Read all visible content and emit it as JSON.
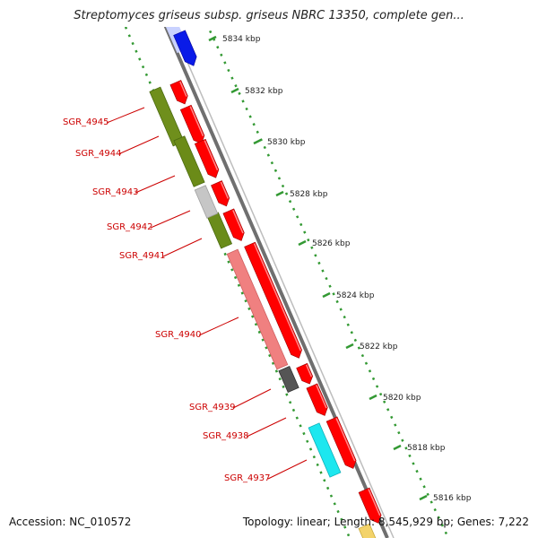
{
  "title": "Streptomyces griseus subsp. griseus NBRC 13350, complete gen...",
  "footer": {
    "accession": "Accession: NC_010572",
    "topology": "Topology: linear; Length: 8,545,929 bp; Genes: 7,222"
  },
  "colors": {
    "backbone": "#808080",
    "ticks": "#339933",
    "gene_red": "#ff0000",
    "label_red": "#cc0000"
  },
  "scale_ticks": [
    {
      "label": "5834 kbp",
      "kbp": 5834
    },
    {
      "label": "5832 kbp",
      "kbp": 5832
    },
    {
      "label": "5830 kbp",
      "kbp": 5830
    },
    {
      "label": "5828 kbp",
      "kbp": 5828
    },
    {
      "label": "5826 kbp",
      "kbp": 5826
    },
    {
      "label": "5824 kbp",
      "kbp": 5824
    },
    {
      "label": "5822 kbp",
      "kbp": 5822
    },
    {
      "label": "5820 kbp",
      "kbp": 5820
    },
    {
      "label": "5818 kbp",
      "kbp": 5818
    },
    {
      "label": "5816 kbp",
      "kbp": 5816
    }
  ],
  "gene_labels": [
    {
      "text": "SGR_4945"
    },
    {
      "text": "SGR_4944"
    },
    {
      "text": "SGR_4943"
    },
    {
      "text": "SGR_4942"
    },
    {
      "text": "SGR_4941"
    },
    {
      "text": "SGR_4940"
    },
    {
      "text": "SGR_4939"
    },
    {
      "text": "SGR_4938"
    },
    {
      "text": "SGR_4937"
    }
  ]
}
